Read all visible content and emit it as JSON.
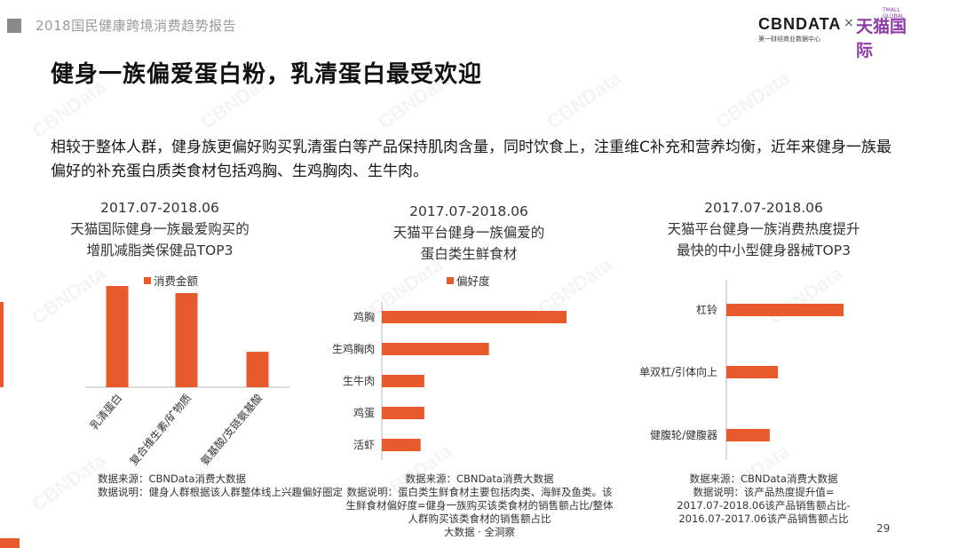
{
  "header": {
    "report_title": "2018国民健康跨境消费趋势报告",
    "logo_cbn": "CBNDATA",
    "logo_cbn_sub": "第一财经商业数据中心",
    "logo_x": "×",
    "logo_tmall": "天猫国际",
    "logo_tmall_sub": "TMALL GLOBAL"
  },
  "title": "健身一族偏爱蛋白粉，乳清蛋白最受欢迎",
  "intro": "相较于整体人群，健身族更偏好购买乳清蛋白等产品保持肌肉含量，同时饮食上，注重维C补充和营养均衡，近年来健身一族最偏好的补充蛋白质类食材包括鸡胸、生鸡胸肉、生牛肉。",
  "accent_color": "#e75a2c",
  "charts": [
    {
      "period": "2017.07-2018.06",
      "title_line1": "天猫国际健身一族最爱购买的",
      "title_line2": "增肌减脂类保健品TOP3",
      "legend": "消费金额",
      "note_line1": "数据来源：CBNData消费大数据",
      "note_line2": "数据说明：健身人群根据该人群整体线上兴趣偏好圈定"
    },
    {
      "period": "2017.07-2018.06",
      "title_line1": "天猫平台健身一族偏爱的",
      "title_line2": "蛋白类生鲜食材",
      "legend": "偏好度",
      "note_line1": "数据来源：CBNData消费大数据",
      "note_line2": "数据说明：蛋白类生鲜食材主要包括肉类、海鲜及鱼类。该",
      "note_line3": "生鲜食材偏好度=健身一族购买该类食材的销售额占比/整体",
      "note_line4": "人群购买该类食材的销售额占比",
      "note_line5": "大数据 · 全洞察"
    },
    {
      "period": "2017.07-2018.06",
      "title_line1": "天猫平台健身一族消费热度提升",
      "title_line2": "最快的中小型健身器械TOP3",
      "note_line1": "数据来源：CBNData消费大数据",
      "note_line2": "数据说明：该产品热度提升值=",
      "note_line3": "2017.07-2018.06该产品销售额占比-",
      "note_line4": "2016.07-2017.06该产品销售额占比"
    }
  ],
  "page_number": "29",
  "chart_data": [
    {
      "type": "bar",
      "orientation": "vertical",
      "categories": [
        "乳清蛋白",
        "复合维生素/矿物质",
        "氨基酸/支链氨基酸"
      ],
      "series": [
        {
          "name": "消费金额",
          "values": [
            100,
            93,
            35
          ]
        }
      ],
      "ylim": [
        0,
        100
      ],
      "grid": false,
      "legend_position": "top"
    },
    {
      "type": "bar",
      "orientation": "horizontal",
      "categories": [
        "鸡胸",
        "生鸡胸肉",
        "生牛肉",
        "鸡蛋",
        "活虾"
      ],
      "series": [
        {
          "name": "偏好度",
          "values": [
            100,
            58,
            23,
            23,
            21
          ]
        }
      ],
      "xlim": [
        0,
        100
      ],
      "grid": false,
      "legend_position": "top"
    },
    {
      "type": "bar",
      "orientation": "horizontal",
      "categories": [
        "杠铃",
        "单双杠/引体向上",
        "健腹轮/健腹器"
      ],
      "series": [
        {
          "values": [
            100,
            44,
            37
          ]
        }
      ],
      "xlim": [
        0,
        100
      ],
      "grid": false
    }
  ]
}
